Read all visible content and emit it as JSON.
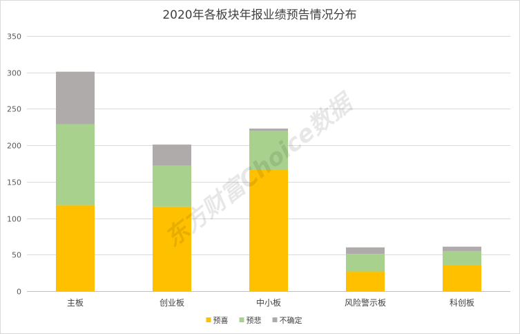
{
  "chart_data": {
    "type": "bar",
    "stacked": true,
    "title": "2020年各板块年报业绩预告情况分布",
    "xlabel": "",
    "ylabel": "",
    "ylim": [
      0,
      350
    ],
    "yticks": [
      0,
      50,
      100,
      150,
      200,
      250,
      300,
      350
    ],
    "grid": true,
    "legend_position": "bottom",
    "categories": [
      "主板",
      "创业板",
      "中小板",
      "风险警示板",
      "科创板"
    ],
    "series": [
      {
        "name": "预喜",
        "color": "#ffc000",
        "values": [
          118,
          116,
          166,
          27,
          36
        ]
      },
      {
        "name": "预悲",
        "color": "#a9d18e",
        "values": [
          111,
          56,
          54,
          24,
          19
        ]
      },
      {
        "name": "不确定",
        "color": "#afabab",
        "values": [
          72,
          29,
          3,
          9,
          6
        ]
      }
    ]
  },
  "watermark": "东方财富Choice数据"
}
